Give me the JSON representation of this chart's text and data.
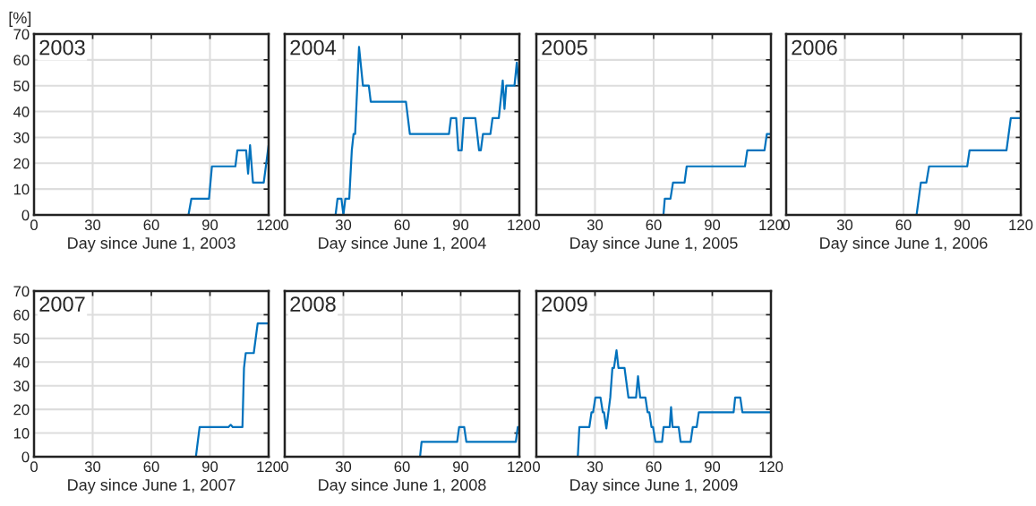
{
  "chart_data": [
    {
      "type": "line",
      "title": "2003",
      "ylabel": "[%]",
      "xlabel": "Day since June 1, 2003",
      "color": "#0072bd",
      "xlim": [
        0,
        120
      ],
      "xticks": [
        0,
        30,
        60,
        90,
        120
      ],
      "ylim": [
        0,
        70
      ],
      "yticks": [
        0,
        10,
        20,
        30,
        40,
        50,
        60,
        70
      ],
      "grid": true,
      "x": [
        0,
        79,
        80.5,
        89.5,
        91,
        103,
        104,
        108.5,
        109.5,
        110.5,
        112,
        117.5,
        120
      ],
      "values": [
        0,
        0,
        6.3,
        6.3,
        18.8,
        18.8,
        25,
        25,
        16,
        27,
        12.5,
        12.5,
        27
      ]
    },
    {
      "type": "line",
      "title": "2004",
      "xlabel": "Day since June 1, 2004",
      "color": "#0072bd",
      "xlim": [
        0,
        120
      ],
      "xticks": [
        0,
        30,
        60,
        90,
        120
      ],
      "ylim": [
        0,
        70
      ],
      "yticks": [
        0,
        10,
        20,
        30,
        40,
        50,
        60,
        70
      ],
      "grid": true,
      "tick_labels": "x",
      "x": [
        0,
        26,
        27,
        29,
        30,
        31,
        33,
        34.3,
        35.2,
        36,
        38,
        40,
        43,
        44,
        62,
        64,
        84,
        85,
        87.7,
        88.8,
        90.5,
        91.6,
        97.5,
        99.4,
        100.3,
        101.4,
        105.2,
        106.3,
        109.5,
        111.5,
        112.4,
        113.3,
        117.5,
        118.7,
        119.8
      ],
      "values": [
        0,
        0,
        6.3,
        6.3,
        0,
        6.3,
        6.3,
        25,
        31.3,
        31.3,
        65,
        50,
        50,
        43.8,
        43.8,
        31.3,
        31.3,
        37.5,
        37.5,
        25,
        25,
        37.5,
        37.5,
        25,
        25,
        31.3,
        31.3,
        37.5,
        37.5,
        52,
        41,
        50,
        50,
        59,
        50
      ]
    },
    {
      "type": "line",
      "title": "2005",
      "xlabel": "Day since June 1, 2005",
      "color": "#0072bd",
      "xlim": [
        0,
        120
      ],
      "xticks": [
        0,
        30,
        60,
        90,
        120
      ],
      "ylim": [
        0,
        70
      ],
      "yticks": [
        0,
        10,
        20,
        30,
        40,
        50,
        60,
        70
      ],
      "grid": true,
      "tick_labels": "x",
      "x": [
        0,
        65,
        65.7,
        68.6,
        69.9,
        75.8,
        76.9,
        106.7,
        107.9,
        116.7,
        117.9,
        120
      ],
      "values": [
        0,
        0,
        6.3,
        6.3,
        12.5,
        12.5,
        18.8,
        18.8,
        25,
        25,
        31.3,
        31.3
      ]
    },
    {
      "type": "line",
      "title": "2006",
      "xlabel": "Day since June 1, 2006",
      "color": "#0072bd",
      "xlim": [
        0,
        120
      ],
      "xticks": [
        0,
        30,
        60,
        90,
        120
      ],
      "ylim": [
        0,
        70
      ],
      "yticks": [
        0,
        10,
        20,
        30,
        40,
        50,
        60,
        70
      ],
      "grid": true,
      "tick_labels": "x",
      "x": [
        0,
        66.7,
        68.9,
        71.7,
        73.1,
        92.6,
        93.8,
        112.7,
        114.9,
        120
      ],
      "values": [
        0,
        0,
        12.5,
        12.5,
        18.8,
        18.8,
        25,
        25,
        37.5,
        37.5
      ]
    },
    {
      "type": "line",
      "title": "2007",
      "xlabel": "Day since June 1, 2007",
      "color": "#0072bd",
      "xlim": [
        0,
        120
      ],
      "xticks": [
        0,
        30,
        60,
        90,
        120
      ],
      "ylim": [
        0,
        70
      ],
      "yticks": [
        0,
        10,
        20,
        30,
        40,
        50,
        60,
        70
      ],
      "grid": true,
      "x": [
        0,
        82.8,
        84.7,
        99.4,
        100.6,
        101.7,
        106.6,
        107.4,
        108.3,
        112.4,
        114.4,
        120
      ],
      "values": [
        0,
        0,
        12.5,
        12.5,
        13.5,
        12.5,
        12.5,
        37.5,
        43.8,
        43.8,
        56.3,
        56.3
      ]
    },
    {
      "type": "line",
      "title": "2008",
      "xlabel": "Day since June 1, 2008",
      "color": "#0072bd",
      "xlim": [
        0,
        120
      ],
      "xticks": [
        0,
        30,
        60,
        90,
        120
      ],
      "ylim": [
        0,
        70
      ],
      "yticks": [
        0,
        10,
        20,
        30,
        40,
        50,
        60,
        70
      ],
      "grid": true,
      "tick_labels": "x",
      "x": [
        0,
        69.2,
        70,
        88.2,
        89.2,
        91.8,
        92.9,
        118.2,
        119.2,
        120
      ],
      "values": [
        0,
        0,
        6.3,
        6.3,
        12.5,
        12.5,
        6.3,
        6.3,
        12.5,
        12.5
      ]
    },
    {
      "type": "line",
      "title": "2009",
      "xlabel": "Day since June 1, 2009",
      "color": "#0072bd",
      "xlim": [
        0,
        120
      ],
      "xticks": [
        0,
        30,
        60,
        90,
        120
      ],
      "ylim": [
        0,
        70
      ],
      "yticks": [
        0,
        10,
        20,
        30,
        40,
        50,
        60,
        70
      ],
      "grid": true,
      "tick_labels": "x",
      "x": [
        0,
        21.2,
        22,
        27.1,
        28.2,
        29,
        30.2,
        32.8,
        34,
        34.6,
        35.8,
        37.8,
        38.9,
        39.7,
        41,
        42,
        45.1,
        47.1,
        51,
        52,
        53.1,
        55.8,
        56.9,
        57.8,
        58.9,
        59.7,
        60.9,
        64.3,
        65.1,
        68.2,
        68.9,
        69.7,
        72.8,
        73.8,
        78.9,
        80,
        82,
        83.1,
        100.9,
        101.7,
        104.3,
        105.4,
        120
      ],
      "values": [
        0,
        0,
        12.5,
        12.5,
        18.8,
        18.8,
        25,
        25,
        18.8,
        18.8,
        12,
        25,
        37.5,
        37.5,
        45,
        37.5,
        37.5,
        25,
        25,
        34,
        25,
        25,
        18.8,
        18.8,
        12.5,
        12.5,
        6.3,
        6.3,
        12.5,
        12.5,
        21,
        12.5,
        12.5,
        6.3,
        6.3,
        12.5,
        12.5,
        18.8,
        18.8,
        25,
        25,
        18.8,
        18.8
      ]
    }
  ]
}
